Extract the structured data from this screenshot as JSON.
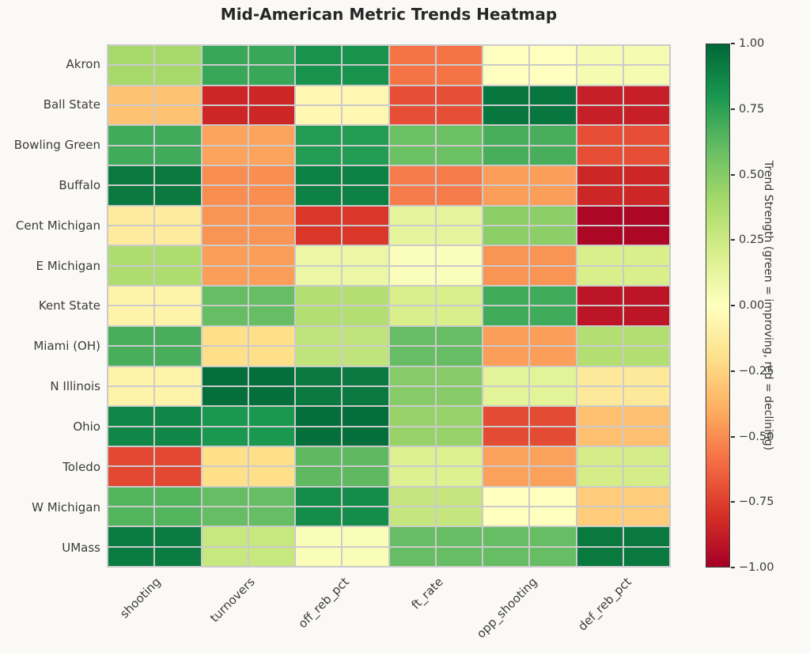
{
  "chart": {
    "title": "Mid-American Metric Trends Heatmap"
  },
  "chart_data": {
    "type": "heatmap",
    "title": "Mid-American Metric Trends Heatmap",
    "x_categories": [
      "shooting",
      "turnovers",
      "off_reb_pct",
      "ft_rate",
      "opp_shooting",
      "def_reb_pct"
    ],
    "y_categories": [
      "Akron",
      "Ball State",
      "Bowling Green",
      "Buffalo",
      "Cent Michigan",
      "E Michigan",
      "Kent State",
      "Miami (OH)",
      "N Illinois",
      "Ohio",
      "Toledo",
      "W Michigan",
      "UMass"
    ],
    "values": [
      [
        0.4,
        0.72,
        0.82,
        -0.58,
        0.0,
        0.05
      ],
      [
        -0.32,
        -0.84,
        -0.05,
        -0.7,
        0.94,
        -0.87
      ],
      [
        0.7,
        -0.43,
        0.78,
        0.58,
        0.68,
        -0.7
      ],
      [
        0.93,
        -0.5,
        0.9,
        -0.55,
        -0.45,
        -0.84
      ],
      [
        -0.13,
        -0.48,
        -0.78,
        0.13,
        0.48,
        -0.97
      ],
      [
        0.37,
        -0.45,
        0.1,
        0.02,
        -0.48,
        0.2
      ],
      [
        -0.08,
        0.6,
        0.35,
        0.2,
        0.7,
        -0.91
      ],
      [
        0.68,
        -0.2,
        0.3,
        0.6,
        -0.45,
        0.35
      ],
      [
        -0.08,
        0.97,
        0.93,
        0.5,
        0.15,
        -0.14
      ],
      [
        0.87,
        0.8,
        0.97,
        0.45,
        -0.71,
        -0.33
      ],
      [
        -0.72,
        -0.2,
        0.62,
        0.18,
        -0.44,
        0.22
      ],
      [
        0.65,
        0.6,
        0.85,
        0.28,
        0.0,
        -0.28
      ],
      [
        0.92,
        0.27,
        0.03,
        0.6,
        0.6,
        0.93
      ]
    ],
    "vmin": -1,
    "vmax": 1,
    "colormap": "RdYlGn",
    "colormap_anchors": [
      "#a50026",
      "#d73027",
      "#f46d43",
      "#fdae61",
      "#fee08b",
      "#ffffbf",
      "#d9ef8b",
      "#a6d96a",
      "#66bd63",
      "#1a9850",
      "#006837"
    ],
    "grid": true,
    "gridline_color": "#cbcbcb",
    "colorbar": {
      "label": "Trend Strength (green = improving, red = declining)",
      "tick_labels": [
        "1.00",
        "0.75",
        "0.50",
        "0.25",
        "0.00",
        "−0.25",
        "−0.50",
        "−0.75",
        "−1.00"
      ],
      "position": "right"
    }
  }
}
